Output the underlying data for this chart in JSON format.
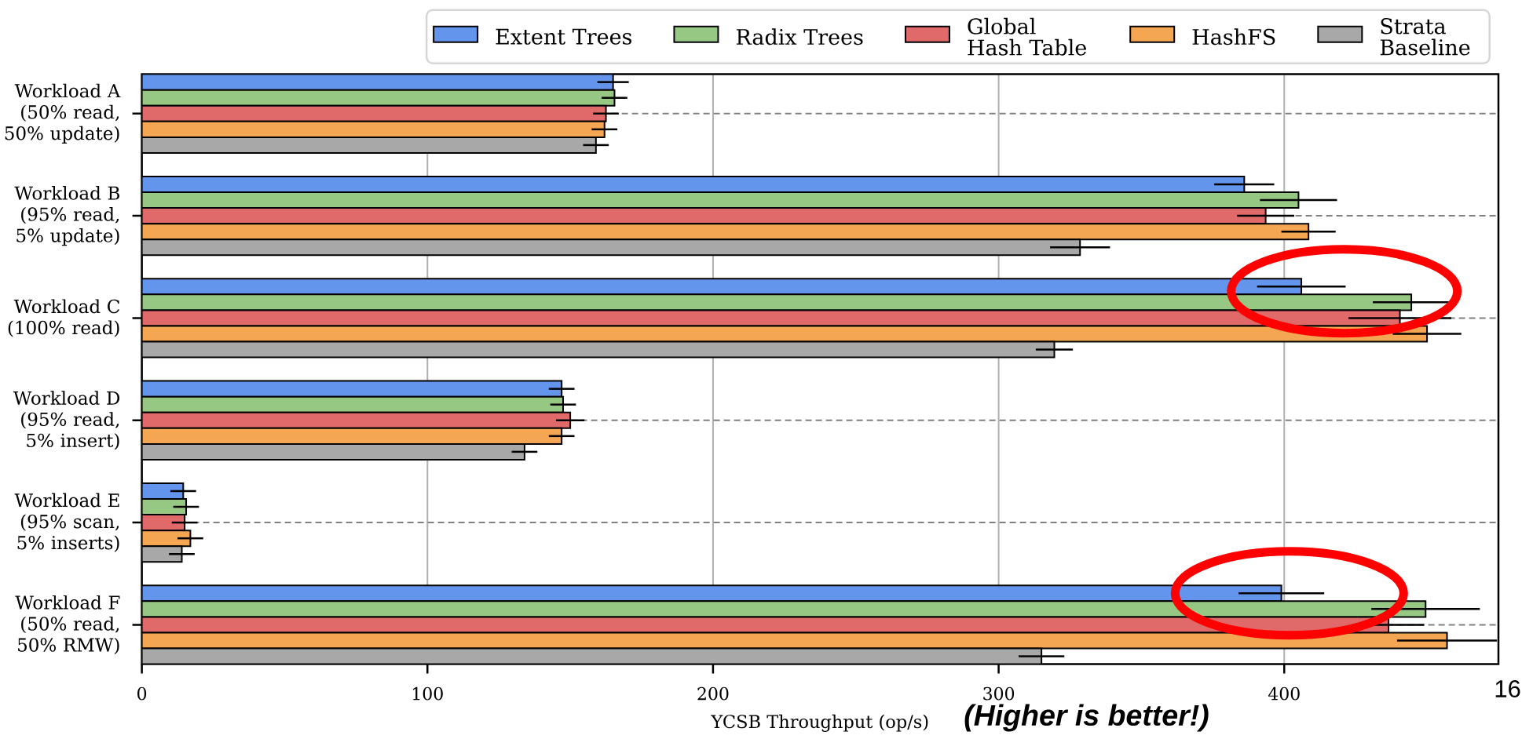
{
  "chart_data": {
    "type": "bar",
    "orientation": "horizontal",
    "xlabel": "YCSB Throughput (op/s)",
    "annotations": [
      "(Higher is better!)",
      "16"
    ],
    "categories": [
      "Workload A (50% read, 50% update)",
      "Workload B (95% read, 5% update)",
      "Workload C (100% read)",
      "Workload D (95% read, 5% insert)",
      "Workload E (95% scan, 5% inserts)",
      "Workload F (50% read, 50% RMW)"
    ],
    "series": [
      {
        "name": "Extent Trees",
        "color": "#6495ed",
        "values": [
          165,
          386,
          406,
          147,
          14.5,
          399
        ],
        "errors": [
          5.5,
          10.5,
          15.5,
          4.5,
          4.5,
          15
        ]
      },
      {
        "name": "Radix Trees",
        "color": "#97c883",
        "values": [
          165.5,
          405,
          444.5,
          147.5,
          15.5,
          449.5
        ],
        "errors": [
          4.5,
          13.5,
          13.5,
          4.5,
          4.5,
          19
        ]
      },
      {
        "name": "Global Hash Table",
        "color": "#e06969",
        "values": [
          162.5,
          393.5,
          440.5,
          150,
          15,
          436.5
        ],
        "errors": [
          4.5,
          10,
          18,
          5,
          4.5,
          12.5
        ]
      },
      {
        "name": "HashFS",
        "color": "#f4a653",
        "values": [
          162,
          408.5,
          450,
          147,
          17,
          457
        ],
        "errors": [
          4.5,
          9.5,
          12,
          4.5,
          4.5,
          17.5
        ]
      },
      {
        "name": "Strata Baseline",
        "color": "#a8a8a8",
        "values": [
          159,
          328.5,
          319.5,
          134,
          14,
          315
        ],
        "errors": [
          4.5,
          10.5,
          6.5,
          4.5,
          4.5,
          8
        ]
      }
    ],
    "xlim": [
      0,
      475
    ],
    "xticks": [
      0,
      100,
      200,
      300,
      400
    ],
    "grid": true,
    "legend": "top right"
  }
}
